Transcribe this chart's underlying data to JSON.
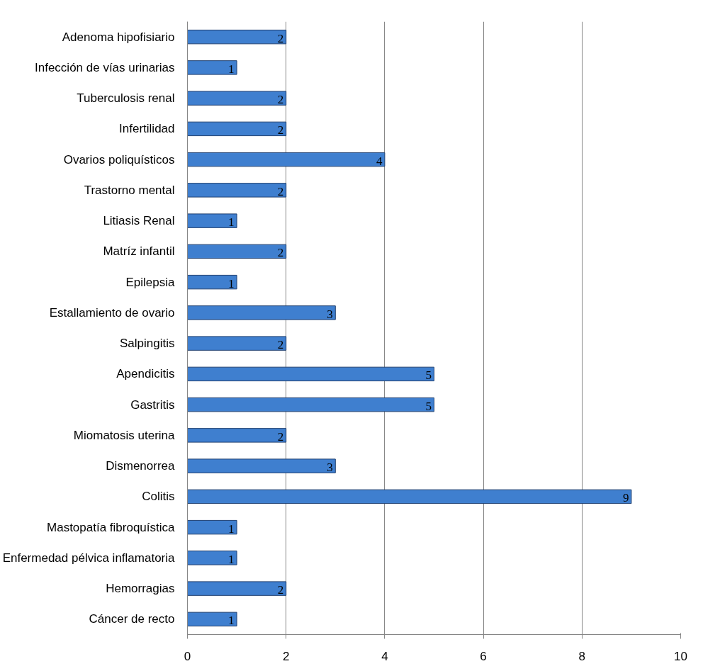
{
  "chart_data": {
    "type": "bar",
    "orientation": "horizontal",
    "categories": [
      "Adenoma hipofisiario",
      "Infección de vías urinarias",
      "Tuberculosis renal",
      "Infertilidad",
      "Ovarios poliquísticos",
      "Trastorno mental",
      "Litiasis Renal",
      "Matríz infantil",
      "Epilepsia",
      "Estallamiento de ovario",
      "Salpingitis",
      "Apendicitis",
      "Gastritis",
      "Miomatosis uterina",
      "Dismenorrea",
      "Colitis",
      "Mastopatía fibroquística",
      "Enfermedad pélvica inflamatoria",
      "Hemorragias",
      "Cáncer de recto"
    ],
    "values": [
      2,
      1,
      2,
      2,
      4,
      2,
      1,
      2,
      1,
      3,
      2,
      5,
      5,
      2,
      3,
      9,
      1,
      1,
      2,
      1
    ],
    "color": "#3f7fcf",
    "xlim": [
      0,
      10
    ],
    "xticks": [
      0,
      2,
      4,
      6,
      8,
      10
    ],
    "grid": "x",
    "data_labels": true
  }
}
